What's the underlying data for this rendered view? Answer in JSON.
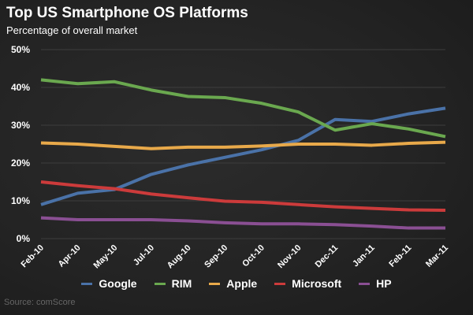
{
  "title": "Top US Smartphone OS Platforms",
  "subtitle": "Percentage of overall market",
  "source": "Source: comScore",
  "chart_data": {
    "type": "line",
    "title": "Top US Smartphone OS Platforms",
    "subtitle": "Percentage of overall market",
    "categories": [
      "Feb-10",
      "Apr-10",
      "May-10",
      "Jul-10",
      "Aug-10",
      "Sep-10",
      "Oct-10",
      "Nov-10",
      "Dec-11",
      "Jan-11",
      "Feb-11",
      "Mar-11"
    ],
    "y_ticks": [
      "0%",
      "10%",
      "20%",
      "30%",
      "40%",
      "50%"
    ],
    "ylim": [
      0,
      50
    ],
    "grid": true,
    "legend_position": "bottom",
    "series": [
      {
        "name": "Google",
        "color": "#4a72a8",
        "values": [
          9,
          12,
          13,
          17,
          19.5,
          21.5,
          23.5,
          26,
          31.5,
          31,
          33,
          34.5
        ]
      },
      {
        "name": "RIM",
        "color": "#6aa84f",
        "values": [
          42,
          41,
          41.5,
          39.3,
          37.6,
          37.3,
          35.8,
          33.5,
          28.7,
          30.4,
          29,
          27
        ]
      },
      {
        "name": "Apple",
        "color": "#e8a94a",
        "values": [
          25.3,
          25,
          24.4,
          23.8,
          24.2,
          24.2,
          24.5,
          25,
          25,
          24.7,
          25.2,
          25.5
        ]
      },
      {
        "name": "Microsoft",
        "color": "#cc3b3b",
        "values": [
          15,
          14,
          13.2,
          11.8,
          10.8,
          9.9,
          9.6,
          9,
          8.4,
          8,
          7.6,
          7.5
        ]
      },
      {
        "name": "HP",
        "color": "#8a4f93",
        "values": [
          5.5,
          5,
          5,
          5,
          4.7,
          4.2,
          3.9,
          3.9,
          3.7,
          3.3,
          2.8,
          2.8
        ]
      }
    ]
  }
}
